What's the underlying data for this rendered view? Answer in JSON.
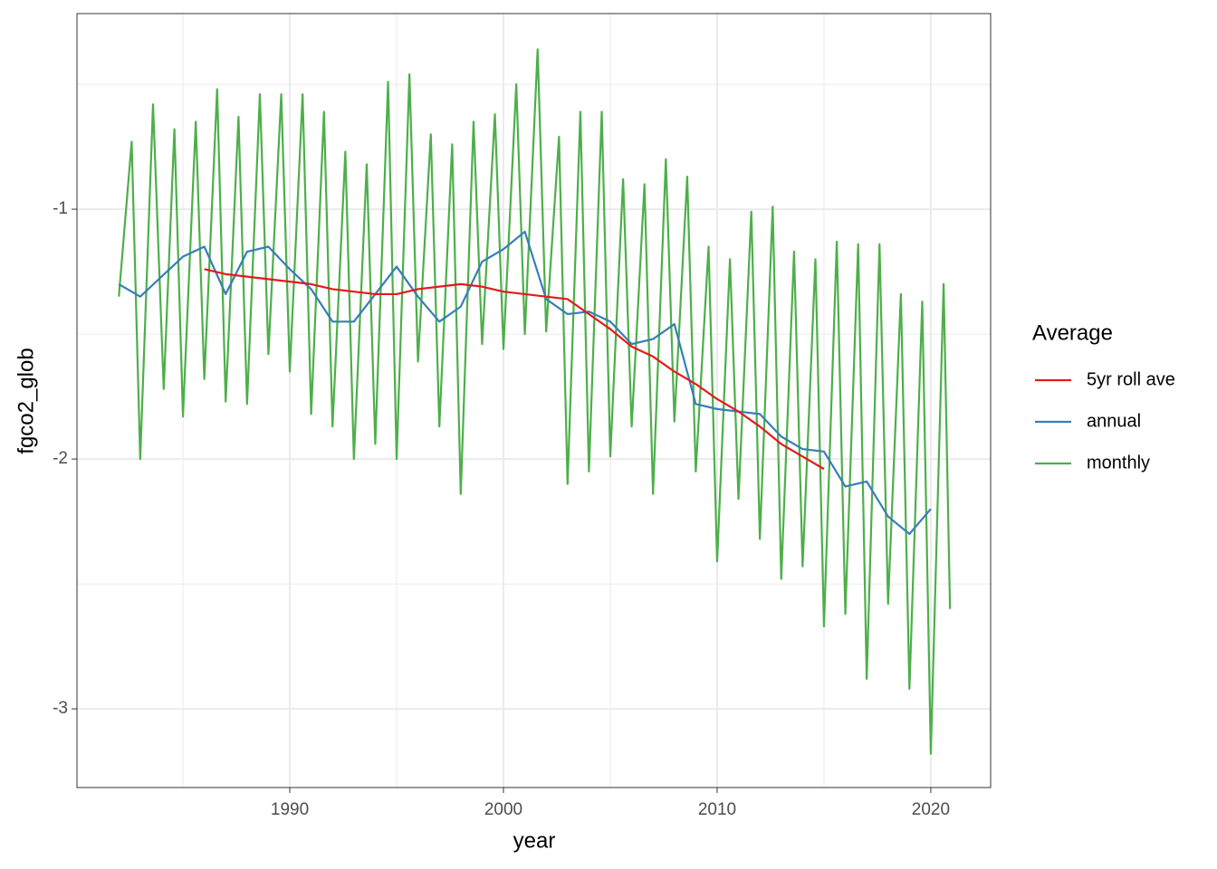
{
  "chart_data": {
    "type": "line",
    "xlabel": "year",
    "ylabel": "fgco2_glob",
    "xlim": [
      1980.04,
      2022.8
    ],
    "ylim": [
      -3.315,
      -0.217
    ],
    "xticks": [
      1990,
      2000,
      2010,
      2020
    ],
    "yticks": [
      -3,
      -2,
      -1
    ],
    "minor_xticks": [
      1985,
      1995,
      2005,
      2015
    ],
    "minor_yticks": [
      -2.5,
      -1.5,
      -0.5
    ],
    "grid": true,
    "legend_title": "Average",
    "legend_position": "right",
    "series": [
      {
        "name": "5yr roll ave",
        "color": "#e41a1c",
        "x": [
          1986,
          1987,
          1988,
          1989,
          1990,
          1991,
          1992,
          1993,
          1994,
          1995,
          1996,
          1997,
          1998,
          1999,
          2000,
          2001,
          2002,
          2003,
          2004,
          2005,
          2006,
          2007,
          2008,
          2009,
          2010,
          2011,
          2012,
          2013,
          2014,
          2015
        ],
        "values": [
          -1.24,
          -1.26,
          -1.27,
          -1.28,
          -1.29,
          -1.3,
          -1.32,
          -1.33,
          -1.34,
          -1.34,
          -1.32,
          -1.31,
          -1.3,
          -1.31,
          -1.33,
          -1.34,
          -1.35,
          -1.36,
          -1.42,
          -1.48,
          -1.55,
          -1.59,
          -1.65,
          -1.7,
          -1.76,
          -1.81,
          -1.87,
          -1.94,
          -1.99,
          -2.04
        ]
      },
      {
        "name": "annual",
        "color": "#377eb8",
        "x": [
          1982,
          1983,
          1984,
          1985,
          1986,
          1987,
          1988,
          1989,
          1990,
          1991,
          1992,
          1993,
          1994,
          1995,
          1996,
          1997,
          1998,
          1999,
          2000,
          2001,
          2002,
          2003,
          2004,
          2005,
          2006,
          2007,
          2008,
          2009,
          2010,
          2011,
          2012,
          2013,
          2014,
          2015,
          2016,
          2017,
          2018,
          2019,
          2020
        ],
        "values": [
          -1.3,
          -1.35,
          -1.27,
          -1.19,
          -1.15,
          -1.34,
          -1.17,
          -1.15,
          -1.24,
          -1.32,
          -1.45,
          -1.45,
          -1.34,
          -1.23,
          -1.35,
          -1.45,
          -1.39,
          -1.21,
          -1.16,
          -1.09,
          -1.36,
          -1.42,
          -1.41,
          -1.45,
          -1.54,
          -1.52,
          -1.46,
          -1.78,
          -1.8,
          -1.81,
          -1.82,
          -1.91,
          -1.96,
          -1.97,
          -2.11,
          -2.09,
          -2.23,
          -2.3,
          -2.2
        ]
      },
      {
        "name": "monthly",
        "color": "#4daf4a",
        "x": [
          1982.0,
          1982.6,
          1983.0,
          1983.6,
          1984.1,
          1984.6,
          1985.0,
          1985.6,
          1986.0,
          1986.6,
          1987.0,
          1987.6,
          1988.0,
          1988.6,
          1989.0,
          1989.6,
          1990.0,
          1990.6,
          1991.0,
          1991.6,
          1992.0,
          1992.6,
          1993.0,
          1993.6,
          1994.0,
          1994.6,
          1995.0,
          1995.6,
          1996.0,
          1996.6,
          1997.0,
          1997.6,
          1998.0,
          1998.6,
          1999.0,
          1999.6,
          2000.0,
          2000.6,
          2001.0,
          2001.6,
          2002.0,
          2002.6,
          2003.0,
          2003.6,
          2004.0,
          2004.6,
          2005.0,
          2005.6,
          2006.0,
          2006.6,
          2007.0,
          2007.6,
          2008.0,
          2008.6,
          2009.0,
          2009.6,
          2010.0,
          2010.6,
          2011.0,
          2011.6,
          2012.0,
          2012.6,
          2013.0,
          2013.6,
          2014.0,
          2014.6,
          2015.0,
          2015.6,
          2016.0,
          2016.6,
          2017.0,
          2017.6,
          2018.0,
          2018.6,
          2019.0,
          2019.6,
          2020.0,
          2020.6,
          2020.9
        ],
        "values": [
          -1.35,
          -0.73,
          -2.0,
          -0.58,
          -1.72,
          -0.68,
          -1.83,
          -0.65,
          -1.68,
          -0.52,
          -1.77,
          -0.63,
          -1.78,
          -0.54,
          -1.58,
          -0.54,
          -1.65,
          -0.54,
          -1.82,
          -0.61,
          -1.87,
          -0.77,
          -2.0,
          -0.82,
          -1.94,
          -0.49,
          -2.0,
          -0.46,
          -1.61,
          -0.7,
          -1.87,
          -0.74,
          -2.14,
          -0.65,
          -1.54,
          -0.62,
          -1.56,
          -0.5,
          -1.5,
          -0.36,
          -1.49,
          -0.71,
          -2.1,
          -0.61,
          -2.05,
          -0.61,
          -1.99,
          -0.88,
          -1.87,
          -0.9,
          -2.14,
          -0.8,
          -1.85,
          -0.87,
          -2.05,
          -1.15,
          -2.41,
          -1.2,
          -2.16,
          -1.01,
          -2.32,
          -0.99,
          -2.48,
          -1.17,
          -2.43,
          -1.2,
          -2.67,
          -1.13,
          -2.62,
          -1.14,
          -2.88,
          -1.14,
          -2.58,
          -1.34,
          -2.92,
          -1.37,
          -3.18,
          -1.3,
          -2.6
        ]
      }
    ]
  }
}
